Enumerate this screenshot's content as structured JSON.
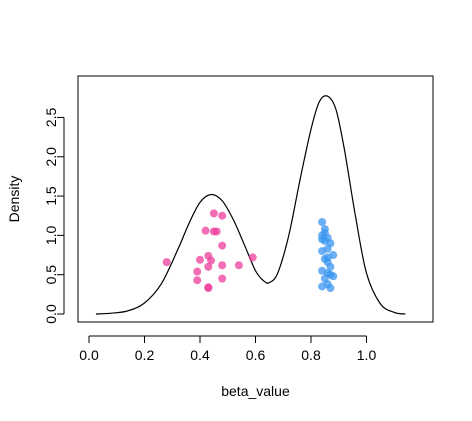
{
  "chart_data": {
    "type": "scatter",
    "title": "",
    "xlabel": "beta_value",
    "ylabel": "Density",
    "xlim": [
      0.0,
      1.2
    ],
    "ylim": [
      0.0,
      2.9
    ],
    "x_ticks": [
      0.0,
      0.2,
      0.4,
      0.6,
      0.8,
      1.0
    ],
    "x_tick_labels": [
      "0.0",
      "0.2",
      "0.4",
      "0.6",
      "0.8",
      "1.0"
    ],
    "y_ticks": [
      0.0,
      0.5,
      1.0,
      1.5,
      2.0,
      2.5
    ],
    "y_tick_labels": [
      "0.0",
      "0.5",
      "1.0",
      "1.5",
      "2.0",
      "2.5"
    ],
    "grid": false,
    "density_line": {
      "color": "#000000",
      "x": [
        0.025,
        0.08,
        0.14,
        0.2,
        0.26,
        0.32,
        0.36,
        0.4,
        0.44,
        0.48,
        0.52,
        0.56,
        0.6,
        0.63,
        0.65,
        0.68,
        0.72,
        0.76,
        0.8,
        0.83,
        0.86,
        0.89,
        0.92,
        0.96,
        1.0,
        1.05,
        1.1,
        1.14
      ],
      "y": [
        0.0,
        0.01,
        0.04,
        0.14,
        0.38,
        0.82,
        1.15,
        1.42,
        1.52,
        1.44,
        1.2,
        0.88,
        0.55,
        0.42,
        0.4,
        0.52,
        1.0,
        1.7,
        2.35,
        2.7,
        2.77,
        2.6,
        2.1,
        1.25,
        0.52,
        0.13,
        0.02,
        0.0
      ]
    },
    "series": [
      {
        "color": "#EE3E9B",
        "x": [
          0.28,
          0.39,
          0.39,
          0.4,
          0.42,
          0.43,
          0.43,
          0.43,
          0.43,
          0.44,
          0.45,
          0.45,
          0.46,
          0.48,
          0.48,
          0.48,
          0.48,
          0.54,
          0.59
        ],
        "y": [
          0.66,
          0.54,
          0.43,
          0.69,
          1.06,
          0.74,
          0.6,
          0.34,
          0.33,
          0.68,
          1.28,
          1.05,
          1.05,
          1.25,
          0.87,
          0.62,
          0.45,
          0.62,
          0.72
        ]
      },
      {
        "color": "#3A96F0",
        "x": [
          0.84,
          0.85,
          0.85,
          0.84,
          0.86,
          0.85,
          0.84,
          0.87,
          0.86,
          0.84,
          0.88,
          0.86,
          0.85,
          0.86,
          0.87,
          0.84,
          0.86,
          0.87,
          0.88,
          0.85,
          0.86,
          0.84,
          0.87
        ],
        "y": [
          1.17,
          1.08,
          1.03,
          1.0,
          0.97,
          0.93,
          0.95,
          0.9,
          0.83,
          0.8,
          0.75,
          0.72,
          0.7,
          0.66,
          0.6,
          0.55,
          0.52,
          0.5,
          0.48,
          0.45,
          0.38,
          0.35,
          0.33
        ]
      }
    ]
  }
}
